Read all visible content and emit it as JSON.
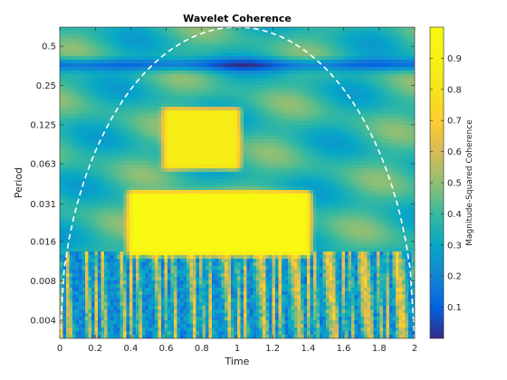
{
  "chart_data": {
    "type": "heatmap",
    "title": "Wavelet Coherence",
    "xlabel": "Time",
    "ylabel": "Period",
    "xlim": [
      0,
      2
    ],
    "x_ticks": [
      0,
      0.2,
      0.4,
      0.6,
      0.8,
      1,
      1.2,
      1.4,
      1.6,
      1.8,
      2
    ],
    "x_tick_labels": [
      "0",
      "0.2",
      "0.4",
      "0.6",
      "0.8",
      "1",
      "1.2",
      "1.4",
      "1.6",
      "1.8",
      "2"
    ],
    "y_scale": "log2",
    "ylim": [
      0.0029,
      0.7
    ],
    "y_ticks": [
      0.004,
      0.008,
      0.016,
      0.031,
      0.063,
      0.125,
      0.25,
      0.5
    ],
    "y_tick_labels": [
      "0.004",
      "0.008",
      "0.016",
      "0.031",
      "0.063",
      "0.125",
      "0.25",
      "0.5"
    ],
    "colorbar": {
      "label": "Magnitude-Squared Coherence",
      "range": [
        0,
        1
      ],
      "ticks": [
        0.1,
        0.2,
        0.3,
        0.4,
        0.5,
        0.6,
        0.7,
        0.8,
        0.9
      ],
      "tick_labels": [
        "0.1",
        "0.2",
        "0.3",
        "0.4",
        "0.5",
        "0.6",
        "0.7",
        "0.8",
        "0.9"
      ],
      "colormap": "parula"
    },
    "high_coherence_regions": [
      {
        "t_start": 0.4,
        "t_end": 1.4,
        "period_start": 0.013,
        "period_end": 0.037,
        "coherence": 0.97
      },
      {
        "t_start": 0.6,
        "t_end": 1.0,
        "period_start": 0.06,
        "period_end": 0.16,
        "coherence": 0.88
      }
    ],
    "cone_of_influence": {
      "style": "white-dashed",
      "x_range": [
        0,
        2
      ],
      "peak_x": 1,
      "peak_period": 0.7
    }
  }
}
